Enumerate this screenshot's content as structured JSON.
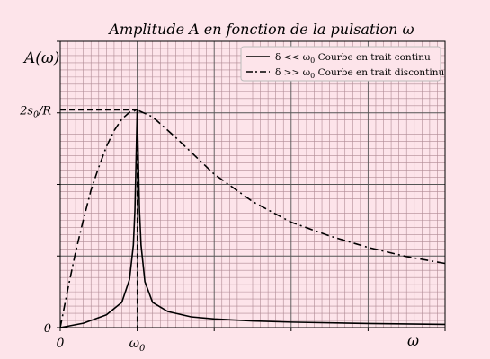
{
  "colors": {
    "background": "#fde4ea",
    "grid_major": "#555555",
    "grid_minor": "#b08a94",
    "curve": "#000000",
    "legend_bg": "#fde4ea"
  },
  "chart_data": {
    "type": "line",
    "title": "Amplitude A en fonction de la pulsation ω",
    "ylabel": "A(ω)",
    "xlabel": "ω",
    "xlim": [
      0,
      5
    ],
    "ylim": [
      0,
      1.25
    ],
    "x_tick_labels": [
      {
        "x": 0,
        "label": "0"
      },
      {
        "x": 1,
        "label": "ω0"
      }
    ],
    "y_tick_labels": [
      {
        "y": 0,
        "label": "0"
      },
      {
        "y": 0.95,
        "label": "2s0/R"
      }
    ],
    "grid": true,
    "legend_position": "top-right",
    "series": [
      {
        "name": "δ << ω0  Courbe en trait continu",
        "style": "solid",
        "peak_x": 1,
        "peak_y": 0.95,
        "x": [
          0,
          0.3,
          0.6,
          0.8,
          0.9,
          0.95,
          0.97,
          0.99,
          1,
          1.01,
          1.03,
          1.05,
          1.1,
          1.2,
          1.4,
          1.7,
          2,
          2.5,
          3,
          4,
          5
        ],
        "y": [
          0,
          0.019,
          0.056,
          0.11,
          0.21,
          0.36,
          0.51,
          0.8,
          0.95,
          0.8,
          0.51,
          0.36,
          0.2,
          0.11,
          0.07,
          0.047,
          0.038,
          0.029,
          0.024,
          0.018,
          0.014
        ]
      },
      {
        "name": "δ >> ω0  Courbe en trait discontinu",
        "style": "dashdot",
        "peak_x": 1,
        "peak_y": 0.95,
        "x": [
          0,
          0.1,
          0.2,
          0.3,
          0.4,
          0.5,
          0.6,
          0.7,
          0.8,
          0.9,
          1,
          1.2,
          1.5,
          2,
          2.5,
          3,
          3.5,
          4,
          4.5,
          5
        ],
        "y": [
          0,
          0.17,
          0.33,
          0.47,
          0.6,
          0.7,
          0.79,
          0.86,
          0.91,
          0.94,
          0.95,
          0.92,
          0.83,
          0.67,
          0.55,
          0.46,
          0.4,
          0.35,
          0.31,
          0.28
        ]
      }
    ]
  }
}
